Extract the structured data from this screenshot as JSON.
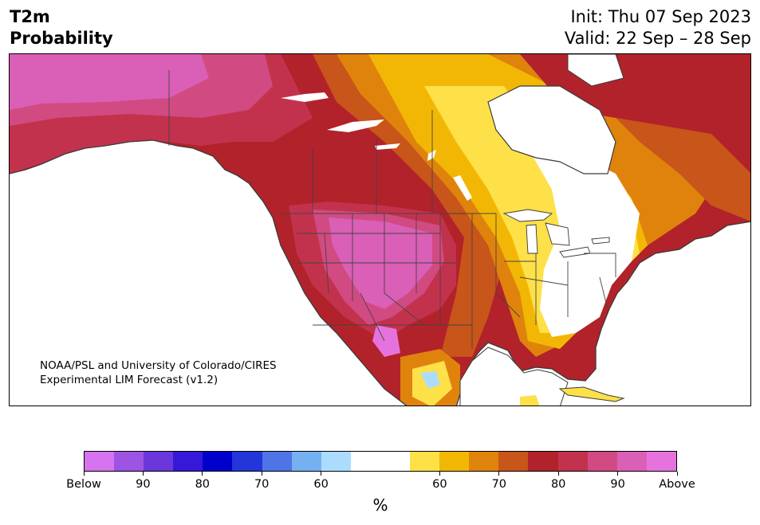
{
  "header": {
    "title_line1": "T2m",
    "title_line2": "Probability",
    "init_text": "Init: Thu 07 Sep 2023",
    "valid_text": "Valid: 22 Sep – 28 Sep"
  },
  "credit": {
    "line1": "NOAA/PSL and University of Colorado/CIRES",
    "line2": "Experimental LIM Forecast (v1.2)"
  },
  "colorbar": {
    "colors": [
      "#d673ee",
      "#9d54e2",
      "#6b37dc",
      "#3618d8",
      "#0000cc",
      "#2435da",
      "#4f74e6",
      "#75b1f2",
      "#acdcfd",
      "#ffffff",
      "#ffffff",
      "#fee048",
      "#f2b705",
      "#df830d",
      "#c85519",
      "#b2222a",
      "#c3324d",
      "#d14b82",
      "#da5fb6",
      "#e673dd"
    ],
    "tick_labels": [
      "Below",
      "90",
      "80",
      "70",
      "60",
      "60",
      "70",
      "80",
      "90",
      "Above"
    ],
    "unit": "%"
  },
  "map": {
    "region": "North America",
    "colors": {
      "land_outline": "#3a3a3a",
      "state_border": "#444444",
      "lakes": "#ffffff"
    }
  }
}
